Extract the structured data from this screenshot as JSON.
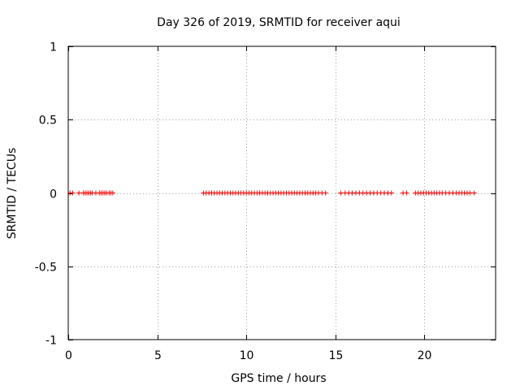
{
  "chart_data": {
    "type": "scatter",
    "title": "Day 326 of 2019, SRMTID for receiver aqui",
    "xlabel": "GPS time / hours",
    "ylabel": "SRMTID / TECUs",
    "xlim": [
      0,
      24
    ],
    "ylim": [
      -1,
      1
    ],
    "grid": true,
    "xticks": [
      0,
      5,
      10,
      15,
      20
    ],
    "yticks": [
      -1,
      -0.5,
      0,
      0.5,
      1
    ],
    "xtick_labels": [
      "0",
      "5",
      "10",
      "15",
      "20"
    ],
    "ytick_labels": [
      "-1",
      "-0.5",
      "0",
      "0.5",
      "1"
    ],
    "marker": "+",
    "series": [
      {
        "name": "SRMTID",
        "color": "#ff0000",
        "x": [
          0.1,
          0.25,
          0.6,
          0.85,
          0.95,
          1.05,
          1.15,
          1.25,
          1.35,
          1.55,
          1.75,
          1.85,
          1.95,
          2.05,
          2.15,
          2.3,
          2.4,
          2.5,
          7.6,
          7.75,
          7.9,
          8.05,
          8.2,
          8.35,
          8.5,
          8.65,
          8.8,
          8.95,
          9.1,
          9.25,
          9.4,
          9.55,
          9.7,
          9.85,
          10.0,
          10.15,
          10.3,
          10.45,
          10.6,
          10.75,
          10.9,
          11.05,
          11.2,
          11.35,
          11.5,
          11.65,
          11.8,
          11.95,
          12.1,
          12.25,
          12.4,
          12.55,
          12.7,
          12.85,
          13.0,
          13.15,
          13.3,
          13.45,
          13.6,
          13.75,
          13.9,
          14.05,
          14.25,
          14.45,
          15.3,
          15.55,
          15.75,
          15.95,
          16.15,
          16.35,
          16.55,
          16.75,
          16.95,
          17.15,
          17.35,
          17.55,
          17.75,
          17.95,
          18.15,
          18.8,
          19.0,
          19.5,
          19.65,
          19.8,
          19.95,
          20.1,
          20.25,
          20.4,
          20.55,
          20.7,
          20.85,
          21.0,
          21.2,
          21.4,
          21.6,
          21.8,
          21.95,
          22.1,
          22.25,
          22.4,
          22.55,
          22.8
        ],
        "y": [
          0,
          0,
          0,
          0,
          0,
          0,
          0,
          0,
          0,
          0,
          0,
          0,
          0,
          0,
          0,
          0,
          0,
          0,
          0,
          0,
          0,
          0,
          0,
          0,
          0,
          0,
          0,
          0,
          0,
          0,
          0,
          0,
          0,
          0,
          0,
          0,
          0,
          0,
          0,
          0,
          0,
          0,
          0,
          0,
          0,
          0,
          0,
          0,
          0,
          0,
          0,
          0,
          0,
          0,
          0,
          0,
          0,
          0,
          0,
          0,
          0,
          0,
          0,
          0,
          0,
          0,
          0,
          0,
          0,
          0,
          0,
          0,
          0,
          0,
          0,
          0,
          0,
          0,
          0,
          0,
          0,
          0,
          0,
          0,
          0,
          0,
          0,
          0,
          0,
          0,
          0,
          0,
          0,
          0,
          0,
          0,
          0,
          0,
          0,
          0,
          0,
          0
        ]
      }
    ]
  }
}
